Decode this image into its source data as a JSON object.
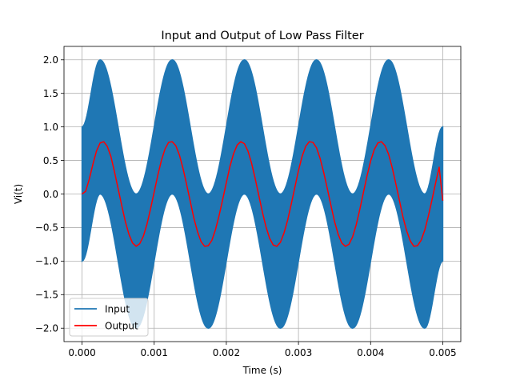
{
  "chart_data": {
    "type": "line",
    "title": "Input and Output of Low Pass Filter",
    "xlabel": "Time (s)",
    "ylabel": "Vi(t)",
    "xlim": [
      -0.00025,
      0.00525
    ],
    "ylim": [
      -2.2,
      2.2
    ],
    "grid": true,
    "legend_position": "lower-left",
    "x_ticks": [
      0.0,
      0.001,
      0.002,
      0.003,
      0.004,
      0.005
    ],
    "x_tick_labels": [
      "0.000",
      "0.001",
      "0.002",
      "0.003",
      "0.004",
      "0.005"
    ],
    "y_ticks": [
      -2.0,
      -1.5,
      -1.0,
      -0.5,
      0.0,
      0.5,
      1.0,
      1.5,
      2.0
    ],
    "y_tick_labels": [
      "−2.0",
      "−1.5",
      "−1.0",
      "−0.5",
      "0.0",
      "0.5",
      "1.0",
      "1.5",
      "2.0"
    ],
    "series": [
      {
        "name": "Input",
        "color": "#1f77b4",
        "style": "dense high-frequency signal filling an envelope",
        "envelope_upper": {
          "x": [
            0.0,
            0.00025,
            0.00075,
            0.00125,
            0.00175,
            0.00225,
            0.00275,
            0.00325,
            0.00375,
            0.00425,
            0.00475,
            0.005
          ],
          "y": [
            1.0,
            2.0,
            0.0,
            2.0,
            0.0,
            2.0,
            0.0,
            2.0,
            0.0,
            2.0,
            0.0,
            1.0
          ]
        },
        "envelope_lower": {
          "x": [
            0.0,
            0.00025,
            0.00075,
            0.00125,
            0.00175,
            0.00225,
            0.00275,
            0.00325,
            0.00375,
            0.00425,
            0.00475,
            0.005
          ],
          "y": [
            -1.0,
            0.0,
            -2.0,
            0.0,
            -2.0,
            0.0,
            -2.0,
            0.0,
            -2.0,
            0.0,
            -2.0,
            -1.0
          ]
        }
      },
      {
        "name": "Output",
        "color": "#ff0000",
        "x": [
          0.0,
          5e-05,
          0.0001,
          0.00015,
          0.0002,
          0.00025,
          0.0003,
          0.00035,
          0.0004,
          0.00045,
          0.0005,
          0.00055,
          0.0006,
          0.00065,
          0.0007,
          0.00075,
          0.0008,
          0.00085,
          0.0009,
          0.00095,
          0.001,
          0.00105,
          0.0011,
          0.00115,
          0.0012,
          0.00125,
          0.0013,
          0.00135,
          0.0014,
          0.00145,
          0.0015,
          0.00155,
          0.0016,
          0.00165,
          0.0017,
          0.00175,
          0.0018,
          0.00185,
          0.0019,
          0.00195,
          0.002,
          0.00205,
          0.0021,
          0.00215,
          0.0022,
          0.00225,
          0.0023,
          0.00235,
          0.0024,
          0.00245,
          0.0025,
          0.00255,
          0.0026,
          0.00265,
          0.0027,
          0.00275,
          0.0028,
          0.00285,
          0.0029,
          0.00295,
          0.003,
          0.00305,
          0.0031,
          0.00315,
          0.0032,
          0.00325,
          0.0033,
          0.00335,
          0.0034,
          0.00345,
          0.0035,
          0.00355,
          0.0036,
          0.00365,
          0.0037,
          0.00375,
          0.0038,
          0.00385,
          0.0039,
          0.00395,
          0.004,
          0.00405,
          0.0041,
          0.00415,
          0.0042,
          0.00425,
          0.0043,
          0.00435,
          0.0044,
          0.00445,
          0.0045,
          0.00455,
          0.0046,
          0.00465,
          0.0047,
          0.00475,
          0.0048,
          0.00485,
          0.0049,
          0.00495,
          0.005
        ],
        "y": [
          0.0,
          0.04,
          0.22,
          0.44,
          0.64,
          0.76,
          0.78,
          0.71,
          0.56,
          0.33,
          0.08,
          -0.17,
          -0.41,
          -0.6,
          -0.73,
          -0.78,
          -0.74,
          -0.63,
          -0.45,
          -0.22,
          0.03,
          0.28,
          0.5,
          0.67,
          0.77,
          0.78,
          0.72,
          0.58,
          0.38,
          0.14,
          -0.11,
          -0.36,
          -0.56,
          -0.71,
          -0.78,
          -0.77,
          -0.69,
          -0.53,
          -0.32,
          -0.08,
          0.17,
          0.41,
          0.6,
          0.73,
          0.78,
          0.75,
          0.64,
          0.46,
          0.23,
          -0.02,
          -0.27,
          -0.49,
          -0.66,
          -0.76,
          -0.78,
          -0.72,
          -0.58,
          -0.39,
          -0.15,
          0.1,
          0.35,
          0.56,
          0.71,
          0.78,
          0.77,
          0.69,
          0.53,
          0.32,
          0.08,
          -0.17,
          -0.41,
          -0.6,
          -0.73,
          -0.78,
          -0.75,
          -0.64,
          -0.46,
          -0.23,
          0.02,
          0.27,
          0.49,
          0.66,
          0.76,
          0.78,
          0.72,
          0.59,
          0.39,
          0.15,
          -0.1,
          -0.35,
          -0.55,
          -0.7,
          -0.78,
          -0.77,
          -0.69,
          -0.54,
          -0.33,
          -0.09,
          0.16,
          0.4,
          -0.1
        ]
      }
    ]
  }
}
